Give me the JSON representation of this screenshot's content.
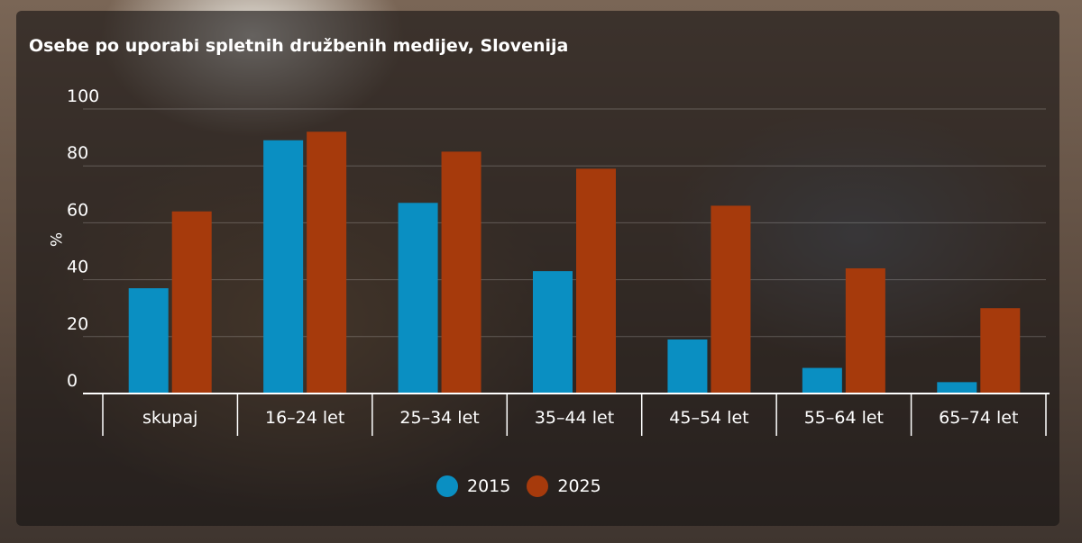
{
  "chart_data": {
    "type": "bar",
    "title": "Osebe po uporabi spletnih družbenih medijev, Slovenija",
    "ylabel": "%",
    "xlabel": "",
    "ylim": [
      0,
      100
    ],
    "yticks": [
      "0",
      "20",
      "40",
      "60",
      "80",
      "100"
    ],
    "categories": [
      "skupaj",
      "16–24 let",
      "25–34 let",
      "35–44 let",
      "45–54 let",
      "55–64 let",
      "65–74 let"
    ],
    "series": [
      {
        "name": "2015",
        "color": "#0a8fc2",
        "values": [
          37,
          89,
          67,
          43,
          19,
          9,
          4
        ]
      },
      {
        "name": "2025",
        "color": "#a63a0c",
        "values": [
          64,
          92,
          85,
          79,
          66,
          44,
          30
        ]
      }
    ],
    "grid": true,
    "legend_position": "bottom"
  }
}
